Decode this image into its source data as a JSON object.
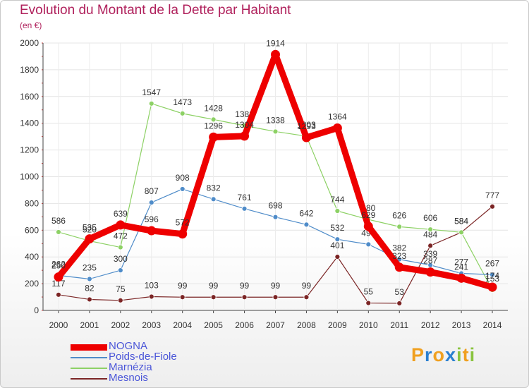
{
  "header": {
    "title": "Evolution du Montant de la Dette par Habitant",
    "subtitle": "(en €)"
  },
  "logo": {
    "letters": [
      "P",
      "r",
      "o",
      "x",
      "i",
      "t",
      "i"
    ],
    "colors": [
      "#f0a020",
      "#2a7fd0",
      "#f0a020",
      "#2a7fd0",
      "#8ac43f",
      "#f0a020",
      "#8ac43f"
    ]
  },
  "chart_data": {
    "type": "line",
    "x": [
      "2000",
      "2001",
      "2002",
      "2003",
      "2004",
      "2005",
      "2006",
      "2007",
      "2008",
      "2009",
      "2010",
      "2011",
      "2012",
      "2013",
      "2014"
    ],
    "y_ticks": [
      "0",
      "200",
      "400",
      "600",
      "800",
      "1000",
      "1200",
      "1400",
      "1600",
      "1800",
      "2000"
    ],
    "ylim": [
      0,
      2000
    ],
    "grid": true,
    "legend_position": "bottom-left",
    "series": [
      {
        "name": "Mesnois",
        "color": "#7b2525",
        "values": [
          117,
          82,
          75,
          103,
          99,
          99,
          99,
          99,
          99,
          401,
          55,
          53,
          484,
          584,
          777
        ]
      },
      {
        "name": "Marnézia",
        "color": "#8dd165",
        "values": [
          586,
          520,
          472,
          1547,
          1473,
          1428,
          1382,
          1338,
          1303,
          744,
          680,
          626,
          606,
          584,
          153
        ]
      },
      {
        "name": "Poids-de-Fiole",
        "color": "#4f8cc9",
        "values": [
          262,
          235,
          300,
          807,
          908,
          832,
          761,
          698,
          642,
          532,
          494,
          382,
          339,
          277,
          267
        ]
      },
      {
        "name": "NOGNA",
        "color": "#ee0000",
        "values": [
          250,
          535,
          639,
          596,
          572,
          1296,
          1304,
          1914,
          1293,
          1364,
          629,
          323,
          287,
          241,
          174
        ]
      }
    ]
  }
}
